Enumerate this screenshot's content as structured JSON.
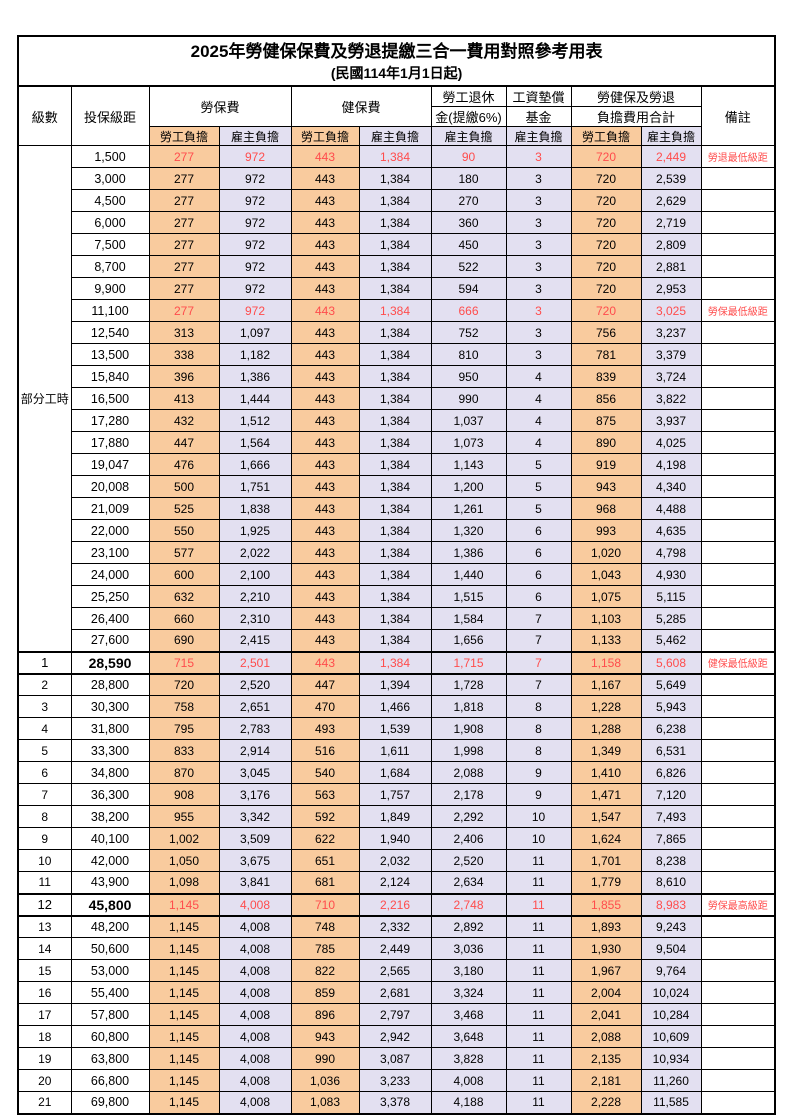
{
  "title": "2025年勞健保保費及勞退提繳三合一費用對照參考用表",
  "subtitle": "(民國114年1月1日起)",
  "colors": {
    "employee_cell": "#f9cb9e",
    "employer_cell": "#e3e0f1",
    "highlight_text": "#ff4c4c",
    "grid": "#000000"
  },
  "header": {
    "level": "級數",
    "bracket": "投保級距",
    "labor_insurance": "勞保費",
    "health_insurance": "健保費",
    "pension_line1": "勞工退休",
    "pension_line2": "金(提繳6%)",
    "wage_fund_line1": "工資墊償",
    "wage_fund_line2": "基金",
    "total_line1": "勞健保及勞退",
    "total_line2": "負擔費用合計",
    "remark": "備註",
    "employee": "勞工負擔",
    "employer": "雇主負擔"
  },
  "part_time_label": "部分工時",
  "part_time_rowspan": 23,
  "rows": [
    {
      "level": "",
      "bracket": "1,500",
      "values": [
        "277",
        "972",
        "443",
        "1,384",
        "90",
        "3",
        "720",
        "2,449"
      ],
      "remark": "勞退最低級距",
      "red": true,
      "em": false
    },
    {
      "level": "",
      "bracket": "3,000",
      "values": [
        "277",
        "972",
        "443",
        "1,384",
        "180",
        "3",
        "720",
        "2,539"
      ],
      "remark": "",
      "red": false,
      "em": false
    },
    {
      "level": "",
      "bracket": "4,500",
      "values": [
        "277",
        "972",
        "443",
        "1,384",
        "270",
        "3",
        "720",
        "2,629"
      ],
      "remark": "",
      "red": false,
      "em": false
    },
    {
      "level": "",
      "bracket": "6,000",
      "values": [
        "277",
        "972",
        "443",
        "1,384",
        "360",
        "3",
        "720",
        "2,719"
      ],
      "remark": "",
      "red": false,
      "em": false
    },
    {
      "level": "",
      "bracket": "7,500",
      "values": [
        "277",
        "972",
        "443",
        "1,384",
        "450",
        "3",
        "720",
        "2,809"
      ],
      "remark": "",
      "red": false,
      "em": false
    },
    {
      "level": "",
      "bracket": "8,700",
      "values": [
        "277",
        "972",
        "443",
        "1,384",
        "522",
        "3",
        "720",
        "2,881"
      ],
      "remark": "",
      "red": false,
      "em": false
    },
    {
      "level": "",
      "bracket": "9,900",
      "values": [
        "277",
        "972",
        "443",
        "1,384",
        "594",
        "3",
        "720",
        "2,953"
      ],
      "remark": "",
      "red": false,
      "em": false
    },
    {
      "level": "",
      "bracket": "11,100",
      "values": [
        "277",
        "972",
        "443",
        "1,384",
        "666",
        "3",
        "720",
        "3,025"
      ],
      "remark": "勞保最低級距",
      "red": true,
      "em": false
    },
    {
      "level": "",
      "bracket": "12,540",
      "values": [
        "313",
        "1,097",
        "443",
        "1,384",
        "752",
        "3",
        "756",
        "3,237"
      ],
      "remark": "",
      "red": false,
      "em": false
    },
    {
      "level": "",
      "bracket": "13,500",
      "values": [
        "338",
        "1,182",
        "443",
        "1,384",
        "810",
        "3",
        "781",
        "3,379"
      ],
      "remark": "",
      "red": false,
      "em": false
    },
    {
      "level": "",
      "bracket": "15,840",
      "values": [
        "396",
        "1,386",
        "443",
        "1,384",
        "950",
        "4",
        "839",
        "3,724"
      ],
      "remark": "",
      "red": false,
      "em": false
    },
    {
      "level": "",
      "bracket": "16,500",
      "values": [
        "413",
        "1,444",
        "443",
        "1,384",
        "990",
        "4",
        "856",
        "3,822"
      ],
      "remark": "",
      "red": false,
      "em": false
    },
    {
      "level": "",
      "bracket": "17,280",
      "values": [
        "432",
        "1,512",
        "443",
        "1,384",
        "1,037",
        "4",
        "875",
        "3,937"
      ],
      "remark": "",
      "red": false,
      "em": false
    },
    {
      "level": "",
      "bracket": "17,880",
      "values": [
        "447",
        "1,564",
        "443",
        "1,384",
        "1,073",
        "4",
        "890",
        "4,025"
      ],
      "remark": "",
      "red": false,
      "em": false
    },
    {
      "level": "",
      "bracket": "19,047",
      "values": [
        "476",
        "1,666",
        "443",
        "1,384",
        "1,143",
        "5",
        "919",
        "4,198"
      ],
      "remark": "",
      "red": false,
      "em": false
    },
    {
      "level": "",
      "bracket": "20,008",
      "values": [
        "500",
        "1,751",
        "443",
        "1,384",
        "1,200",
        "5",
        "943",
        "4,340"
      ],
      "remark": "",
      "red": false,
      "em": false
    },
    {
      "level": "",
      "bracket": "21,009",
      "values": [
        "525",
        "1,838",
        "443",
        "1,384",
        "1,261",
        "5",
        "968",
        "4,488"
      ],
      "remark": "",
      "red": false,
      "em": false
    },
    {
      "level": "",
      "bracket": "22,000",
      "values": [
        "550",
        "1,925",
        "443",
        "1,384",
        "1,320",
        "6",
        "993",
        "4,635"
      ],
      "remark": "",
      "red": false,
      "em": false
    },
    {
      "level": "",
      "bracket": "23,100",
      "values": [
        "577",
        "2,022",
        "443",
        "1,384",
        "1,386",
        "6",
        "1,020",
        "4,798"
      ],
      "remark": "",
      "red": false,
      "em": false
    },
    {
      "level": "",
      "bracket": "24,000",
      "values": [
        "600",
        "2,100",
        "443",
        "1,384",
        "1,440",
        "6",
        "1,043",
        "4,930"
      ],
      "remark": "",
      "red": false,
      "em": false
    },
    {
      "level": "",
      "bracket": "25,250",
      "values": [
        "632",
        "2,210",
        "443",
        "1,384",
        "1,515",
        "6",
        "1,075",
        "5,115"
      ],
      "remark": "",
      "red": false,
      "em": false
    },
    {
      "level": "",
      "bracket": "26,400",
      "values": [
        "660",
        "2,310",
        "443",
        "1,384",
        "1,584",
        "7",
        "1,103",
        "5,285"
      ],
      "remark": "",
      "red": false,
      "em": false
    },
    {
      "level": "",
      "bracket": "27,600",
      "values": [
        "690",
        "2,415",
        "443",
        "1,384",
        "1,656",
        "7",
        "1,133",
        "5,462"
      ],
      "remark": "",
      "red": false,
      "em": false
    },
    {
      "level": "1",
      "bracket": "28,590",
      "values": [
        "715",
        "2,501",
        "443",
        "1,384",
        "1,715",
        "7",
        "1,158",
        "5,608"
      ],
      "remark": "健保最低級距",
      "red": true,
      "em": true
    },
    {
      "level": "2",
      "bracket": "28,800",
      "values": [
        "720",
        "2,520",
        "447",
        "1,394",
        "1,728",
        "7",
        "1,167",
        "5,649"
      ],
      "remark": "",
      "red": false,
      "em": false
    },
    {
      "level": "3",
      "bracket": "30,300",
      "values": [
        "758",
        "2,651",
        "470",
        "1,466",
        "1,818",
        "8",
        "1,228",
        "5,943"
      ],
      "remark": "",
      "red": false,
      "em": false
    },
    {
      "level": "4",
      "bracket": "31,800",
      "values": [
        "795",
        "2,783",
        "493",
        "1,539",
        "1,908",
        "8",
        "1,288",
        "6,238"
      ],
      "remark": "",
      "red": false,
      "em": false
    },
    {
      "level": "5",
      "bracket": "33,300",
      "values": [
        "833",
        "2,914",
        "516",
        "1,611",
        "1,998",
        "8",
        "1,349",
        "6,531"
      ],
      "remark": "",
      "red": false,
      "em": false
    },
    {
      "level": "6",
      "bracket": "34,800",
      "values": [
        "870",
        "3,045",
        "540",
        "1,684",
        "2,088",
        "9",
        "1,410",
        "6,826"
      ],
      "remark": "",
      "red": false,
      "em": false
    },
    {
      "level": "7",
      "bracket": "36,300",
      "values": [
        "908",
        "3,176",
        "563",
        "1,757",
        "2,178",
        "9",
        "1,471",
        "7,120"
      ],
      "remark": "",
      "red": false,
      "em": false
    },
    {
      "level": "8",
      "bracket": "38,200",
      "values": [
        "955",
        "3,342",
        "592",
        "1,849",
        "2,292",
        "10",
        "1,547",
        "7,493"
      ],
      "remark": "",
      "red": false,
      "em": false
    },
    {
      "level": "9",
      "bracket": "40,100",
      "values": [
        "1,002",
        "3,509",
        "622",
        "1,940",
        "2,406",
        "10",
        "1,624",
        "7,865"
      ],
      "remark": "",
      "red": false,
      "em": false
    },
    {
      "level": "10",
      "bracket": "42,000",
      "values": [
        "1,050",
        "3,675",
        "651",
        "2,032",
        "2,520",
        "11",
        "1,701",
        "8,238"
      ],
      "remark": "",
      "red": false,
      "em": false
    },
    {
      "level": "11",
      "bracket": "43,900",
      "values": [
        "1,098",
        "3,841",
        "681",
        "2,124",
        "2,634",
        "11",
        "1,779",
        "8,610"
      ],
      "remark": "",
      "red": false,
      "em": false
    },
    {
      "level": "12",
      "bracket": "45,800",
      "values": [
        "1,145",
        "4,008",
        "710",
        "2,216",
        "2,748",
        "11",
        "1,855",
        "8,983"
      ],
      "remark": "勞保最高級距",
      "red": true,
      "em": true
    },
    {
      "level": "13",
      "bracket": "48,200",
      "values": [
        "1,145",
        "4,008",
        "748",
        "2,332",
        "2,892",
        "11",
        "1,893",
        "9,243"
      ],
      "remark": "",
      "red": false,
      "em": false
    },
    {
      "level": "14",
      "bracket": "50,600",
      "values": [
        "1,145",
        "4,008",
        "785",
        "2,449",
        "3,036",
        "11",
        "1,930",
        "9,504"
      ],
      "remark": "",
      "red": false,
      "em": false
    },
    {
      "level": "15",
      "bracket": "53,000",
      "values": [
        "1,145",
        "4,008",
        "822",
        "2,565",
        "3,180",
        "11",
        "1,967",
        "9,764"
      ],
      "remark": "",
      "red": false,
      "em": false
    },
    {
      "level": "16",
      "bracket": "55,400",
      "values": [
        "1,145",
        "4,008",
        "859",
        "2,681",
        "3,324",
        "11",
        "2,004",
        "10,024"
      ],
      "remark": "",
      "red": false,
      "em": false
    },
    {
      "level": "17",
      "bracket": "57,800",
      "values": [
        "1,145",
        "4,008",
        "896",
        "2,797",
        "3,468",
        "11",
        "2,041",
        "10,284"
      ],
      "remark": "",
      "red": false,
      "em": false
    },
    {
      "level": "18",
      "bracket": "60,800",
      "values": [
        "1,145",
        "4,008",
        "943",
        "2,942",
        "3,648",
        "11",
        "2,088",
        "10,609"
      ],
      "remark": "",
      "red": false,
      "em": false
    },
    {
      "level": "19",
      "bracket": "63,800",
      "values": [
        "1,145",
        "4,008",
        "990",
        "3,087",
        "3,828",
        "11",
        "2,135",
        "10,934"
      ],
      "remark": "",
      "red": false,
      "em": false
    },
    {
      "level": "20",
      "bracket": "66,800",
      "values": [
        "1,145",
        "4,008",
        "1,036",
        "3,233",
        "4,008",
        "11",
        "2,181",
        "11,260"
      ],
      "remark": "",
      "red": false,
      "em": false
    },
    {
      "level": "21",
      "bracket": "69,800",
      "values": [
        "1,145",
        "4,008",
        "1,083",
        "3,378",
        "4,188",
        "11",
        "2,228",
        "11,585"
      ],
      "remark": "",
      "red": false,
      "em": false
    }
  ]
}
